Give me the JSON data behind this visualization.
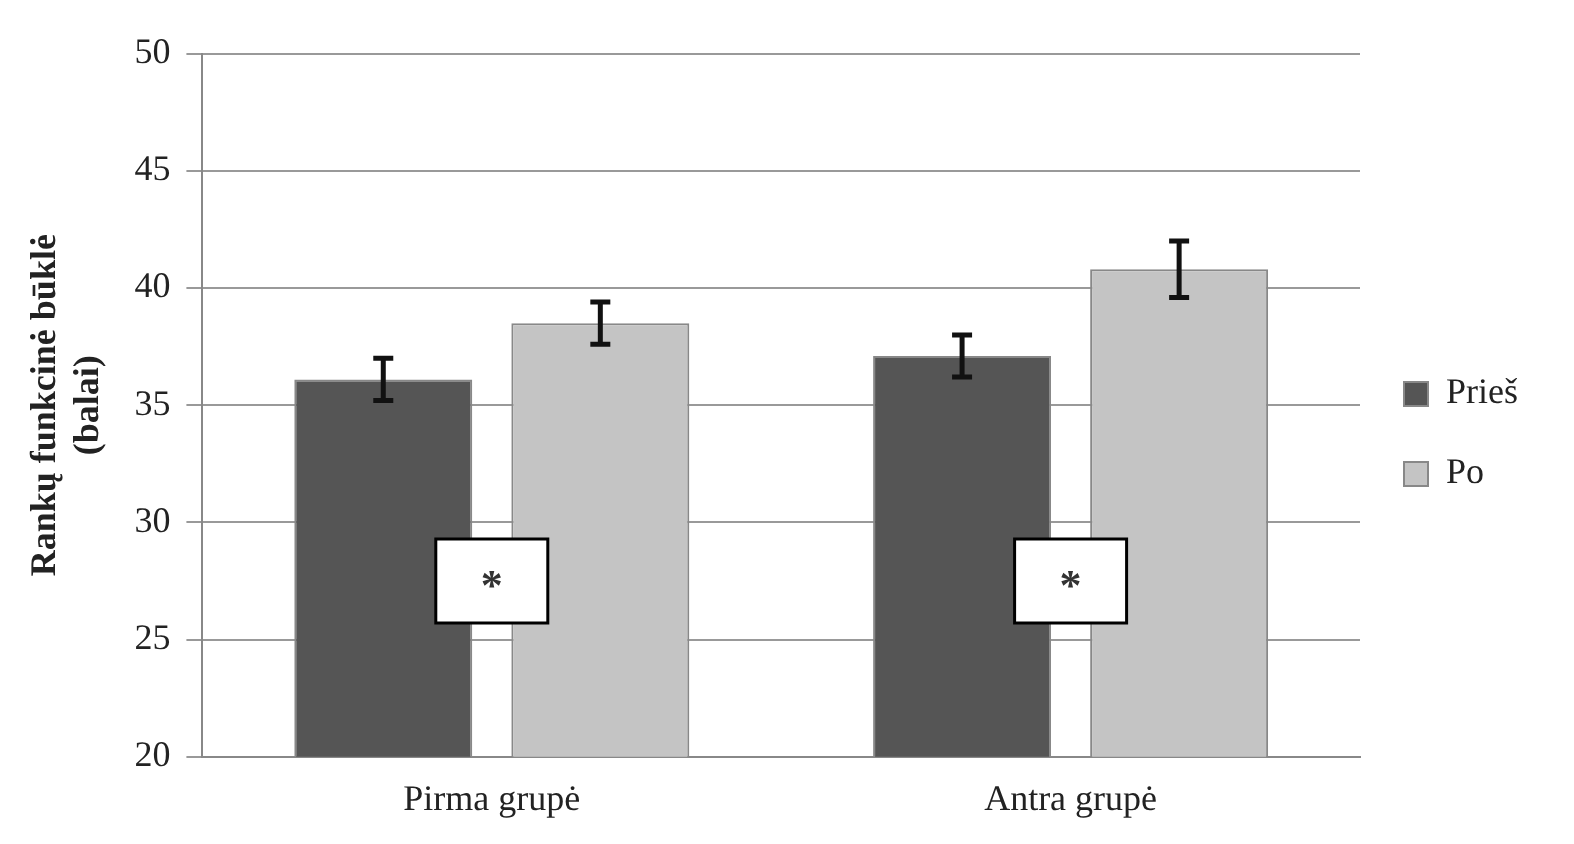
{
  "chart_data": {
    "type": "bar",
    "ylabel": "Rankų funkcinė būklė\n(balai)",
    "categories": [
      "Pirma grupė",
      "Antra grupė"
    ],
    "series": [
      {
        "name": "Prieš",
        "color": "#555555",
        "values": [
          36.1,
          37.1
        ],
        "errors": [
          0.9,
          0.9
        ]
      },
      {
        "name": "Po",
        "color": "#c4c4c4",
        "values": [
          38.5,
          40.8
        ],
        "errors": [
          0.9,
          1.2
        ]
      }
    ],
    "ylim": [
      20,
      50
    ],
    "yticks": [
      20,
      25,
      30,
      35,
      40,
      45,
      50
    ],
    "grid": "y",
    "legend": "right",
    "annotations": [
      "*",
      "*"
    ]
  }
}
